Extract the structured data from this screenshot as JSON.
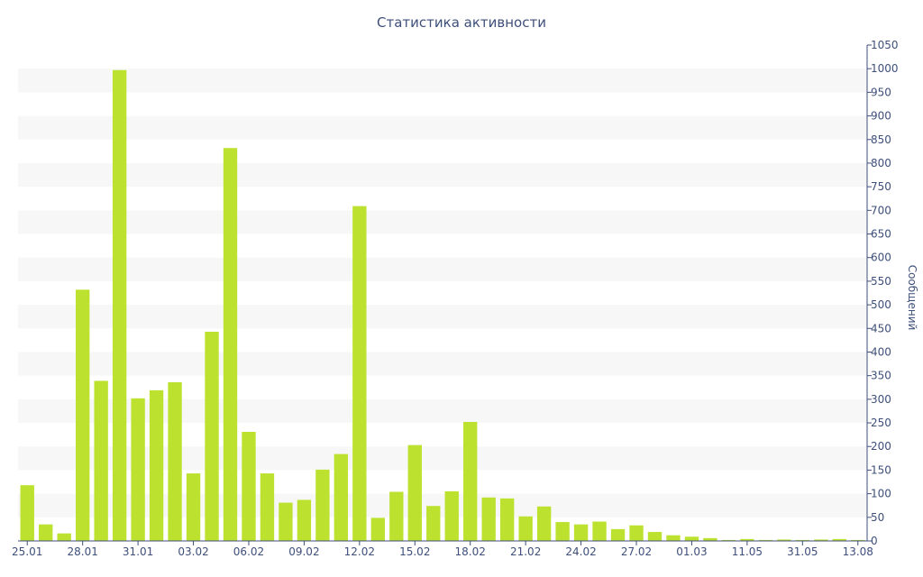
{
  "chart_data": {
    "type": "bar",
    "title": "Статистика активности",
    "ylabel": "Сообщений",
    "xlabel": "",
    "ylim": [
      0,
      1050
    ],
    "y_ticks": [
      0,
      50,
      100,
      150,
      200,
      250,
      300,
      350,
      400,
      450,
      500,
      550,
      600,
      650,
      700,
      750,
      800,
      850,
      900,
      950,
      1000,
      1050
    ],
    "y_axis_position": "right",
    "grid": "alternating horizontal bands",
    "x_tick_labels": [
      "25.01",
      "28.01",
      "31.01",
      "03.02",
      "06.02",
      "09.02",
      "12.02",
      "15.02",
      "18.02",
      "21.02",
      "24.02",
      "27.02",
      "01.03",
      "11.05",
      "31.05",
      "13.08"
    ],
    "x_tick_every": 3,
    "values": [
      118,
      35,
      16,
      532,
      339,
      997,
      302,
      319,
      336,
      143,
      443,
      832,
      231,
      143,
      81,
      87,
      151,
      184,
      709,
      49,
      104,
      203,
      74,
      105,
      252,
      92,
      90,
      52,
      73,
      40,
      35,
      41,
      25,
      33,
      19,
      12,
      9,
      6,
      2,
      4,
      2,
      3,
      2,
      3,
      4,
      2
    ],
    "colors": {
      "bar": "#bce22f",
      "text": "#3e4f7a",
      "band": "#f7f7f7",
      "axis": "#3e4f7a"
    }
  }
}
